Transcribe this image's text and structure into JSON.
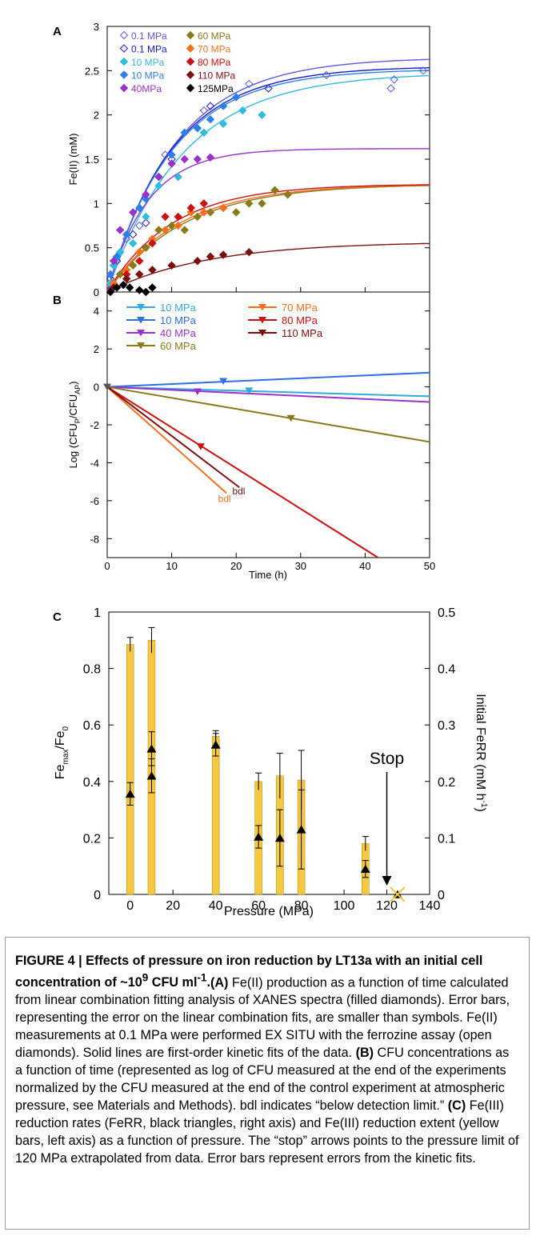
{
  "panels": {
    "A": {
      "letter": "A",
      "ylabel": "Fe(II) (mM)",
      "xlim": [
        0,
        50
      ],
      "ylim": [
        0,
        3
      ],
      "yticks": [
        "0",
        "0.5",
        "1",
        "1.5",
        "2",
        "2.5",
        "3"
      ],
      "xticks": [],
      "legend": [
        {
          "label": "0.1 MPa",
          "color": "#5a5ae0",
          "marker": "open-diamond"
        },
        {
          "label": "0.1 MPa",
          "color": "#1a1ac8",
          "marker": "open-diamond"
        },
        {
          "label": "10 MPa",
          "color": "#33bbdd",
          "marker": "diamond"
        },
        {
          "label": "10 MPa",
          "color": "#2f7fe8",
          "marker": "diamond"
        },
        {
          "label": "40MPa",
          "color": "#9933cc",
          "marker": "diamond"
        },
        {
          "label": "60 MPa",
          "color": "#8a7a1a",
          "marker": "diamond"
        },
        {
          "label": "70 MPa",
          "color": "#f07020",
          "marker": "diamond"
        },
        {
          "label": "80 MPa",
          "color": "#cc1111",
          "marker": "diamond"
        },
        {
          "label": "110 MPa",
          "color": "#7a1010",
          "marker": "diamond"
        },
        {
          "label": "125MPa",
          "color": "#000000",
          "marker": "diamond"
        }
      ],
      "curves": [
        {
          "color": "#5a5ae0",
          "A": 2.65,
          "k": 0.095
        },
        {
          "color": "#1a1ac8",
          "A": 2.55,
          "k": 0.1
        },
        {
          "color": "#33bbdd",
          "A": 2.48,
          "k": 0.085
        },
        {
          "color": "#2f7fe8",
          "A": 2.52,
          "k": 0.1
        },
        {
          "color": "#9933cc",
          "A": 1.62,
          "k": 0.16
        },
        {
          "color": "#8a7a1a",
          "A": 1.22,
          "k": 0.085
        },
        {
          "color": "#f07020",
          "A": 1.22,
          "k": 0.09
        },
        {
          "color": "#cc1111",
          "A": 1.22,
          "k": 0.1
        },
        {
          "color": "#7a1010",
          "A": 0.57,
          "k": 0.065
        }
      ],
      "points": [
        {
          "color": "#5a5ae0",
          "open": true,
          "data": [
            [
              1,
              0.3
            ],
            [
              2,
              0.45
            ],
            [
              3,
              0.6
            ],
            [
              5,
              0.75
            ],
            [
              9,
              1.55
            ],
            [
              15,
              2.05
            ],
            [
              22,
              2.35
            ],
            [
              34,
              2.45
            ],
            [
              44,
              2.3
            ],
            [
              44.5,
              2.4
            ],
            [
              49,
              2.5
            ]
          ]
        },
        {
          "color": "#1a1ac8",
          "open": true,
          "data": [
            [
              0.5,
              0.15
            ],
            [
              1.5,
              0.35
            ],
            [
              4,
              0.65
            ],
            [
              6,
              0.78
            ],
            [
              10,
              1.5
            ],
            [
              16,
              2.1
            ],
            [
              25,
              2.3
            ]
          ]
        },
        {
          "color": "#33bbdd",
          "open": false,
          "data": [
            [
              0.5,
              0.1
            ],
            [
              1,
              0.3
            ],
            [
              2,
              0.45
            ],
            [
              4,
              0.55
            ],
            [
              6,
              0.85
            ],
            [
              8,
              1.2
            ],
            [
              11,
              1.3
            ],
            [
              15,
              1.8
            ],
            [
              18,
              1.9
            ],
            [
              21,
              2.05
            ],
            [
              24,
              2.0
            ]
          ]
        },
        {
          "color": "#2f7fe8",
          "open": false,
          "data": [
            [
              0.5,
              0.2
            ],
            [
              1.5,
              0.4
            ],
            [
              3,
              0.65
            ],
            [
              5,
              0.95
            ],
            [
              6,
              1.05
            ],
            [
              8,
              1.3
            ],
            [
              10,
              1.55
            ],
            [
              12,
              1.8
            ],
            [
              14,
              1.85
            ],
            [
              16,
              1.95
            ],
            [
              18,
              2.1
            ],
            [
              20,
              2.2
            ]
          ]
        },
        {
          "color": "#9933cc",
          "open": false,
          "data": [
            [
              1,
              0.35
            ],
            [
              2,
              0.7
            ],
            [
              4,
              0.9
            ],
            [
              6,
              1.1
            ],
            [
              8,
              1.3
            ],
            [
              10,
              1.45
            ],
            [
              12,
              1.5
            ],
            [
              14,
              1.5
            ],
            [
              16,
              1.52
            ]
          ]
        },
        {
          "color": "#8a7a1a",
          "open": false,
          "data": [
            [
              2,
              0.2
            ],
            [
              4,
              0.3
            ],
            [
              6,
              0.5
            ],
            [
              8,
              0.7
            ],
            [
              10,
              0.75
            ],
            [
              12,
              0.7
            ],
            [
              14,
              0.85
            ],
            [
              16,
              0.9
            ],
            [
              18,
              0.95
            ],
            [
              20,
              0.9
            ],
            [
              22,
              1.0
            ],
            [
              24,
              1.0
            ],
            [
              26,
              1.15
            ],
            [
              28,
              1.1
            ]
          ]
        },
        {
          "color": "#f07020",
          "open": false,
          "data": [
            [
              1,
              0.1
            ],
            [
              3,
              0.25
            ],
            [
              5,
              0.45
            ],
            [
              7,
              0.6
            ],
            [
              9,
              0.7
            ],
            [
              11,
              0.75
            ],
            [
              13,
              0.9
            ],
            [
              15,
              0.9
            ],
            [
              18,
              0.95
            ]
          ]
        },
        {
          "color": "#cc1111",
          "open": false,
          "data": [
            [
              1,
              0.05
            ],
            [
              3,
              0.2
            ],
            [
              5,
              0.35
            ],
            [
              7,
              0.55
            ],
            [
              9,
              0.85
            ],
            [
              11,
              0.85
            ],
            [
              13,
              0.95
            ],
            [
              15,
              1.0
            ]
          ]
        },
        {
          "color": "#7a1010",
          "open": false,
          "data": [
            [
              1,
              0.05
            ],
            [
              3,
              0.15
            ],
            [
              5,
              0.2
            ],
            [
              7,
              0.25
            ],
            [
              10,
              0.3
            ],
            [
              14,
              0.35
            ],
            [
              16,
              0.4
            ],
            [
              18,
              0.42
            ],
            [
              22,
              0.45
            ]
          ]
        },
        {
          "color": "#000000",
          "open": false,
          "data": [
            [
              0.5,
              0.0
            ],
            [
              1.5,
              0.05
            ],
            [
              2.5,
              0.08
            ],
            [
              3.5,
              0.05
            ],
            [
              5,
              0.02
            ],
            [
              6,
              0.0
            ],
            [
              7,
              0.05
            ]
          ]
        }
      ]
    },
    "B": {
      "letter": "B",
      "ylabel_main": "Log (CFU",
      "ylabel_sub1": "P",
      "ylabel_mid": "/CFU",
      "ylabel_sub2": "AP",
      "ylabel_end": ")",
      "xlabel": "Time (h)",
      "xlim": [
        0,
        50
      ],
      "ylim": [
        -9,
        5
      ],
      "xticks": [
        "0",
        "10",
        "20",
        "30",
        "40",
        "50"
      ],
      "yticks": [
        "4",
        "2",
        "0",
        "-2",
        "-4",
        "-6",
        "-8"
      ],
      "legend": [
        {
          "label": "10 MPa",
          "color": "#33aadd"
        },
        {
          "label": "10 MPa",
          "color": "#2f6fe0"
        },
        {
          "label": "40 MPa",
          "color": "#9933cc"
        },
        {
          "label": "60 MPa",
          "color": "#8a7a1a"
        },
        {
          "label": "70 MPa",
          "color": "#f07020"
        },
        {
          "label": "80 MPa",
          "color": "#cc1111"
        },
        {
          "label": "110 MPa",
          "color": "#7a1010"
        }
      ],
      "lines": [
        {
          "color": "#33aadd",
          "x": [
            0,
            50
          ],
          "y": [
            0,
            -0.5
          ]
        },
        {
          "color": "#2f6fe0",
          "x": [
            0,
            50
          ],
          "y": [
            0,
            0.75
          ]
        },
        {
          "color": "#9933cc",
          "x": [
            0,
            50
          ],
          "y": [
            0,
            -0.8
          ]
        },
        {
          "color": "#8a7a1a",
          "x": [
            0,
            50
          ],
          "y": [
            0,
            -2.9
          ]
        },
        {
          "color": "#f07020",
          "x": [
            0,
            18.5
          ],
          "y": [
            0,
            -5.6
          ]
        },
        {
          "color": "#cc1111",
          "x": [
            0,
            42
          ],
          "y": [
            0,
            -9
          ]
        },
        {
          "color": "#7a1010",
          "x": [
            0,
            20.5
          ],
          "y": [
            0,
            -5.3
          ]
        }
      ],
      "markers": [
        {
          "color": "#33aadd",
          "x": 22,
          "y": -0.2
        },
        {
          "color": "#2f6fe0",
          "x": 18,
          "y": 0.3
        },
        {
          "color": "#9933cc",
          "x": 14,
          "y": -0.25
        },
        {
          "color": "#8a7a1a",
          "x": 28.5,
          "y": -1.65
        },
        {
          "color": "#cc1111",
          "x": 14.5,
          "y": -3.15
        },
        {
          "color": "#555555",
          "x": 0,
          "y": 0
        }
      ],
      "bdl_labels": [
        {
          "text": "bdl",
          "color": "#f07020",
          "x": 18.2,
          "y": -5.9
        },
        {
          "text": "bdl",
          "color": "#7a1010",
          "x": 20.4,
          "y": -5.5
        }
      ]
    },
    "C": {
      "letter": "C",
      "ylabel_left_main": "Fe",
      "ylabel_left_sub1": "max",
      "ylabel_left_mid": "/Fe",
      "ylabel_left_sub2": "0",
      "ylabel_right": "Initial FeRR (mM h",
      "ylabel_right_sup": "-1",
      "ylabel_right_end": ")",
      "xlabel": "Pressure (MPa)",
      "xlim": [
        -10,
        140
      ],
      "ylim_left": [
        0,
        1
      ],
      "ylim_right": [
        0,
        0.5
      ],
      "xticks": [
        "0",
        "20",
        "40",
        "60",
        "80",
        "100",
        "120",
        "140"
      ],
      "yticks_left": [
        "0",
        "0.2",
        "0.4",
        "0.6",
        "0.8",
        "1"
      ],
      "yticks_right": [
        "0",
        "0.1",
        "0.2",
        "0.3",
        "0.4",
        "0.5"
      ],
      "bar_color": "#f5c842",
      "bars": [
        {
          "x": 0,
          "value": 0.885,
          "err": 0.025
        },
        {
          "x": 10,
          "value": 0.9,
          "err": 0.045
        },
        {
          "x": 40,
          "value": 0.56,
          "err": 0.02
        },
        {
          "x": 60,
          "value": 0.4,
          "err": 0.03
        },
        {
          "x": 70,
          "value": 0.42,
          "err": 0.08
        },
        {
          "x": 80,
          "value": 0.405,
          "err": 0.105
        },
        {
          "x": 110,
          "value": 0.18,
          "err": 0.025
        }
      ],
      "rates": [
        {
          "x": 0,
          "value": 0.178,
          "err": 0.02
        },
        {
          "x": 10,
          "value": 0.21,
          "err": 0.03
        },
        {
          "x": 10,
          "value": 0.258,
          "err": 0.03
        },
        {
          "x": 40,
          "value": 0.265,
          "err": 0.02
        },
        {
          "x": 60,
          "value": 0.102,
          "err": 0.02
        },
        {
          "x": 70,
          "value": 0.1,
          "err": 0.05
        },
        {
          "x": 80,
          "value": 0.115,
          "err": 0.07
        },
        {
          "x": 110,
          "value": 0.045,
          "err": 0.015
        },
        {
          "x": 125,
          "value": 0.0,
          "err": 0
        }
      ],
      "stop_label": "Stop",
      "stop_x": 120
    }
  },
  "caption": {
    "title": "FIGURE 4 | Effects of pressure on iron reduction by LT13a with an initial cell concentration of ~10",
    "title_sup": "9",
    "title_end": " CFU ml",
    "title_sup2": "-1",
    "title_dot": ".",
    "a_label": "(A)",
    "a_text": " Fe(II) production as a function of time calculated from linear combination fitting analysis of XANES spectra (filled diamonds). Error bars, representing the error on the linear combination fits, are smaller than symbols. Fe(II) measurements at 0.1 MPa were performed EX SITU with the ferrozine assay (open diamonds). Solid lines are first-order kinetic fits of the data. ",
    "b_label": "(B)",
    "b_text": " CFU concentrations as a function of time (represented as log of CFU measured at the end of the experiments normalized by the CFU measured at the end of the control experiment at atmospheric pressure, see Materials and Methods). bdl indicates “below detection limit.” ",
    "c_label": "(C)",
    "c_text": " Fe(III) reduction rates (FeRR, black triangles, right axis) and Fe(III) reduction extent (yellow bars, left axis) as a function of pressure. The “stop” arrows points to the pressure limit of 120 MPa extrapolated from data. Error bars represent errors from the kinetic fits."
  }
}
